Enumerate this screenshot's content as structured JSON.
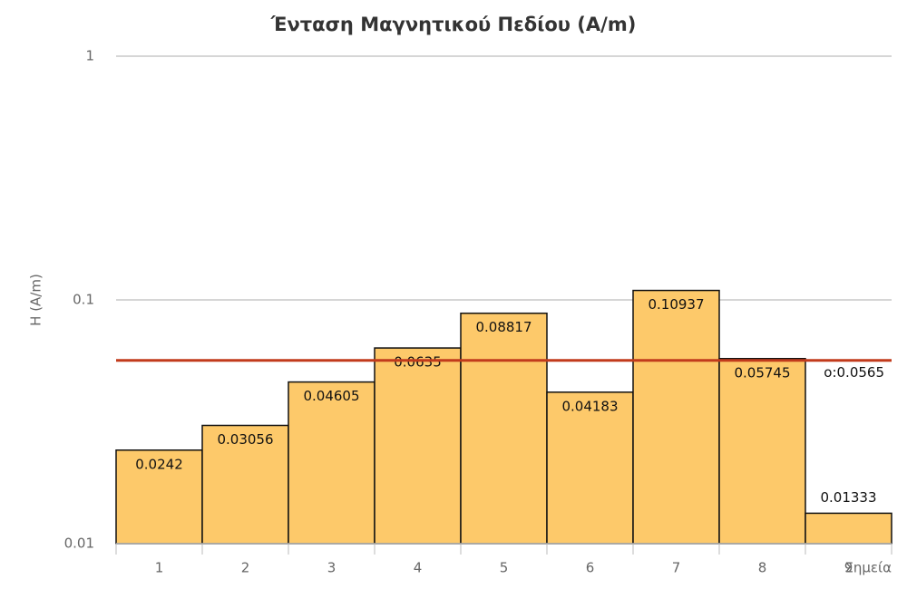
{
  "chart_data": {
    "type": "bar",
    "title": "Ένταση Μαγνητικού Πεδίου (A/m)",
    "x_label": "Σημεία",
    "y_label": "H (A/m)",
    "categories": [
      "1",
      "2",
      "3",
      "4",
      "5",
      "6",
      "7",
      "8",
      "9"
    ],
    "values": [
      0.0242,
      0.03056,
      0.04605,
      0.0635,
      0.08817,
      0.04183,
      0.10937,
      0.05745,
      0.01333
    ],
    "color": "#fdc96a",
    "ylim": [
      0.01,
      1
    ],
    "yticks": [
      0.01,
      0.1,
      1
    ],
    "log_scale": true,
    "grid": true,
    "reference_line": {
      "value": 0.0565,
      "label": "o:0.0565",
      "color": "#c23b1c"
    }
  }
}
